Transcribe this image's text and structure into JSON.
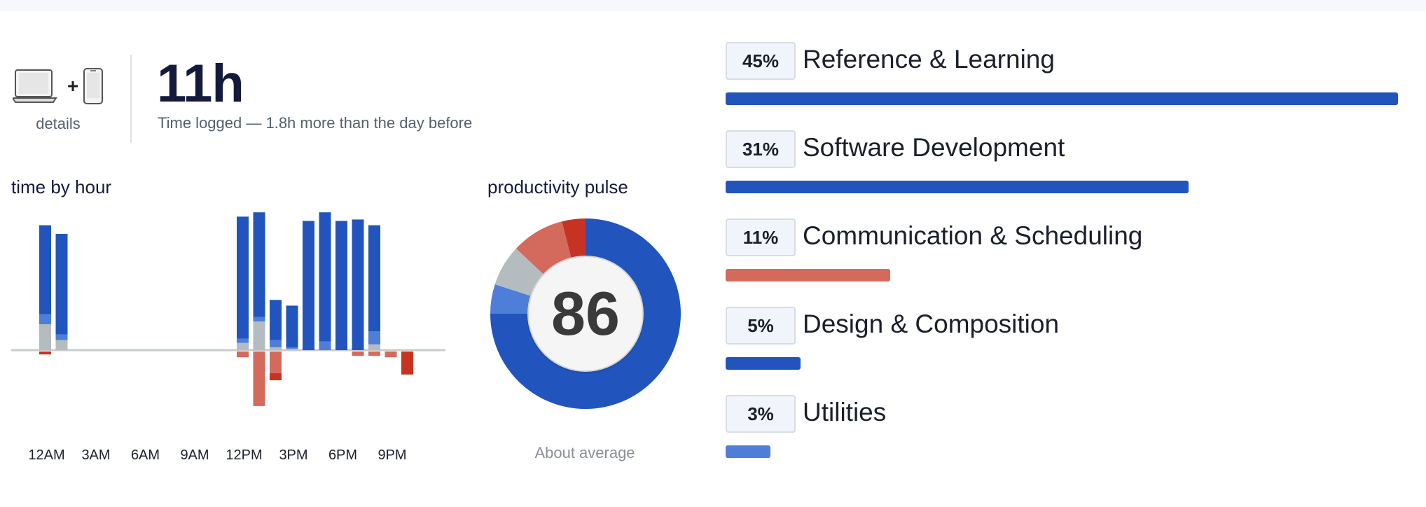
{
  "summary": {
    "details_label": "details",
    "plus": "+",
    "total": "11h",
    "subtitle": "Time logged — 1.8h more than the day before"
  },
  "hour_chart_heading": "time by hour",
  "pulse_heading": "productivity pulse",
  "pulse": {
    "score": "86",
    "label": "About average"
  },
  "colors": {
    "very_productive": "#2155bd",
    "productive": "#4e7ed8",
    "neutral": "#b4bcbf",
    "distracting": "#d46a5c",
    "very_distracting": "#c63322",
    "baseline": "#c8cdcf"
  },
  "categories": [
    {
      "pct": "45%",
      "name": "Reference & Learning",
      "share": 45,
      "color": "#2155bd"
    },
    {
      "pct": "31%",
      "name": "Software Development",
      "share": 31,
      "color": "#2155bd"
    },
    {
      "pct": "11%",
      "name": "Communication & Scheduling",
      "share": 11,
      "color": "#d46a5c"
    },
    {
      "pct": "5%",
      "name": "Design & Composition",
      "share": 5,
      "color": "#2155bd"
    },
    {
      "pct": "3%",
      "name": "Utilities",
      "share": 3,
      "color": "#4e7ed8"
    }
  ],
  "chart_data": [
    {
      "type": "bar",
      "title": "time by hour",
      "x_tick_labels": [
        "12AM",
        "3AM",
        "6AM",
        "9AM",
        "12PM",
        "3PM",
        "6PM",
        "9PM"
      ],
      "hours": [
        "12AM",
        "1AM",
        "2AM",
        "3AM",
        "4AM",
        "5AM",
        "6AM",
        "7AM",
        "8AM",
        "9AM",
        "10AM",
        "11AM",
        "12PM",
        "1PM",
        "2PM",
        "3PM",
        "4PM",
        "5PM",
        "6PM",
        "7PM",
        "8PM",
        "9PM",
        "10PM",
        "11PM"
      ],
      "y_unit": "minutes",
      "ylim": [
        -40,
        90
      ],
      "series": [
        {
          "key": "very_productive",
          "values": [
            62,
            70,
            0,
            0,
            0,
            0,
            0,
            0,
            0,
            0,
            0,
            0,
            85,
            73,
            28,
            29,
            90,
            90,
            90,
            91,
            74,
            0,
            0,
            0
          ]
        },
        {
          "key": "productive",
          "values": [
            7,
            4,
            0,
            0,
            0,
            0,
            0,
            0,
            0,
            0,
            0,
            0,
            3,
            3,
            5,
            1,
            0,
            6,
            0,
            0,
            9,
            0,
            0,
            0
          ]
        },
        {
          "key": "neutral",
          "values": [
            18,
            7,
            0,
            0,
            0,
            0,
            0,
            0,
            0,
            0,
            0,
            0,
            5,
            20,
            2,
            1,
            0,
            0,
            0,
            0,
            4,
            0,
            0,
            0
          ]
        },
        {
          "key": "distracting",
          "values": [
            0,
            0,
            0,
            0,
            0,
            0,
            0,
            0,
            0,
            0,
            0,
            0,
            4,
            38,
            15,
            0,
            0,
            0,
            0,
            0,
            3,
            0,
            0,
            0
          ]
        },
        {
          "key": "very_distracting",
          "values": [
            2,
            0,
            0,
            0,
            0,
            0,
            0,
            0,
            0,
            0,
            0,
            0,
            0,
            0,
            5,
            0,
            0,
            0,
            0,
            0,
            0,
            0,
            16,
            0
          ]
        }
      ],
      "distracting_extra_small": [
        0,
        0,
        0,
        0,
        0,
        0,
        0,
        0,
        0,
        0,
        0,
        0,
        0,
        0,
        0,
        0,
        0,
        0,
        0,
        3,
        0,
        4,
        0,
        0
      ]
    },
    {
      "type": "pie",
      "title": "productivity pulse",
      "center_value": 86,
      "slices": [
        {
          "key": "very_productive",
          "value": 75
        },
        {
          "key": "productive",
          "value": 5
        },
        {
          "key": "neutral",
          "value": 7
        },
        {
          "key": "distracting",
          "value": 9
        },
        {
          "key": "very_distracting",
          "value": 4
        }
      ]
    },
    {
      "type": "bar",
      "title": "",
      "categories": [
        "Reference & Learning",
        "Software Development",
        "Communication & Scheduling",
        "Design & Composition",
        "Utilities"
      ],
      "values": [
        45,
        31,
        11,
        5,
        3
      ]
    }
  ]
}
